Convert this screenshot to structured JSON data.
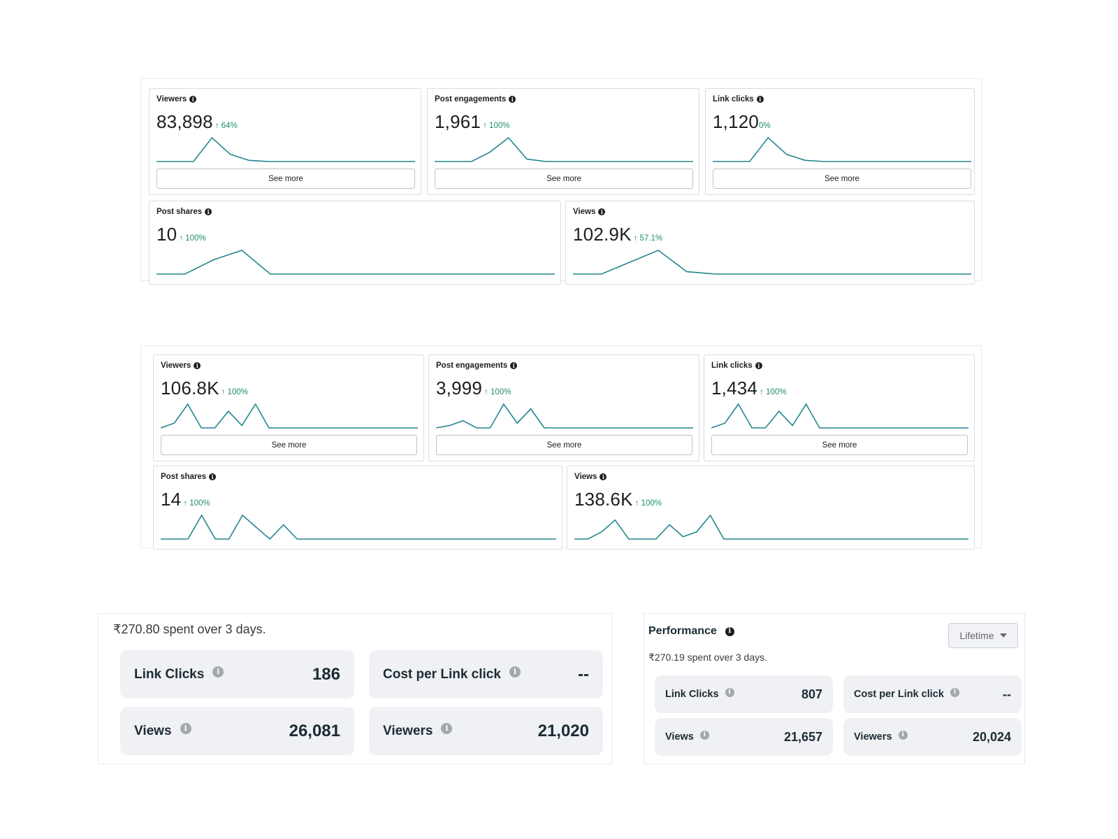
{
  "insights_before": {
    "cards": [
      {
        "label": "Viewers",
        "value": "83,898",
        "delta": "↑ 64%",
        "see_more": "See more",
        "trend": [
          0,
          0,
          0,
          1,
          0.3,
          0.05,
          0,
          0,
          0,
          0,
          0,
          0,
          0,
          0,
          0
        ]
      },
      {
        "label": "Post engagements",
        "value": "1,961",
        "delta": "↑ 100%",
        "see_more": "See more",
        "trend": [
          0,
          0,
          0,
          0.4,
          1,
          0.1,
          0,
          0,
          0,
          0,
          0,
          0,
          0,
          0,
          0
        ]
      },
      {
        "label": "Link clicks",
        "value": "1,120",
        "delta": "0%",
        "see_more": "See more",
        "trend": [
          0,
          0,
          0,
          1,
          0.3,
          0.05,
          0,
          0,
          0,
          0,
          0,
          0,
          0,
          0,
          0
        ]
      },
      {
        "label": "Post shares",
        "value": "10",
        "delta": "↑ 100%",
        "trend": [
          0,
          0,
          0.6,
          1,
          0,
          0,
          0,
          0,
          0,
          0,
          0,
          0,
          0,
          0,
          0
        ]
      },
      {
        "label": "Views",
        "value": "102.9K",
        "delta": "↑ 57.1%",
        "trend": [
          0,
          0,
          0.5,
          1,
          0.1,
          0,
          0,
          0,
          0,
          0,
          0,
          0,
          0,
          0,
          0
        ]
      }
    ]
  },
  "insights_after": {
    "cards": [
      {
        "label": "Viewers",
        "value": "106.8K",
        "delta": "↑ 100%",
        "see_more": "See more",
        "trend": [
          0,
          0.2,
          1,
          0,
          0,
          0.7,
          0.1,
          1,
          0,
          0,
          0,
          0,
          0,
          0,
          0,
          0,
          0,
          0,
          0,
          0
        ]
      },
      {
        "label": "Post engagements",
        "value": "3,999",
        "delta": "↑ 100%",
        "see_more": "See more",
        "trend": [
          0,
          0.1,
          0.3,
          0,
          0,
          1,
          0.2,
          0.8,
          0,
          0,
          0,
          0,
          0,
          0,
          0,
          0,
          0,
          0,
          0,
          0
        ]
      },
      {
        "label": "Link clicks",
        "value": "1,434",
        "delta": "↑ 100%",
        "see_more": "See more",
        "trend": [
          0,
          0.2,
          1,
          0,
          0,
          0.7,
          0.1,
          1,
          0,
          0,
          0,
          0,
          0,
          0,
          0,
          0,
          0,
          0,
          0,
          0
        ]
      },
      {
        "label": "Post shares",
        "value": "14",
        "delta": "↑ 100%",
        "trend": [
          0,
          0,
          0,
          1,
          0,
          0,
          1,
          0.5,
          0,
          0.6,
          0,
          0,
          0,
          0,
          0,
          0,
          0,
          0,
          0,
          0,
          0,
          0,
          0,
          0,
          0,
          0,
          0,
          0,
          0,
          0
        ]
      },
      {
        "label": "Views",
        "value": "138.6K",
        "delta": "↑ 100%",
        "trend": [
          0,
          0,
          0.3,
          0.8,
          0,
          0,
          0,
          0.6,
          0.1,
          0.3,
          1,
          0,
          0,
          0,
          0,
          0,
          0,
          0,
          0,
          0,
          0,
          0,
          0,
          0,
          0,
          0,
          0,
          0,
          0,
          0
        ]
      }
    ]
  },
  "summary_left": {
    "spent": "₹270.80 spent over 3 days.",
    "metrics": [
      {
        "label": "Link Clicks",
        "value": "186"
      },
      {
        "label": "Cost per Link click",
        "value": "--"
      },
      {
        "label": "Views",
        "value": "26,081"
      },
      {
        "label": "Viewers",
        "value": "21,020"
      }
    ]
  },
  "summary_right": {
    "title": "Performance",
    "dropdown": "Lifetime",
    "spent": "₹270.19 spent over 3 days.",
    "metrics": [
      {
        "label": "Link Clicks",
        "value": "807"
      },
      {
        "label": "Cost per Link click",
        "value": "--"
      },
      {
        "label": "Views",
        "value": "21,657"
      },
      {
        "label": "Viewers",
        "value": "20,024"
      }
    ]
  },
  "icons": {
    "info": "info-icon",
    "dropdown_caret": "chevron-down-icon"
  },
  "colors": {
    "trend_line": "#23868f",
    "positive_delta": "#1f8e6e",
    "metric_tile": "#eff1f4"
  }
}
